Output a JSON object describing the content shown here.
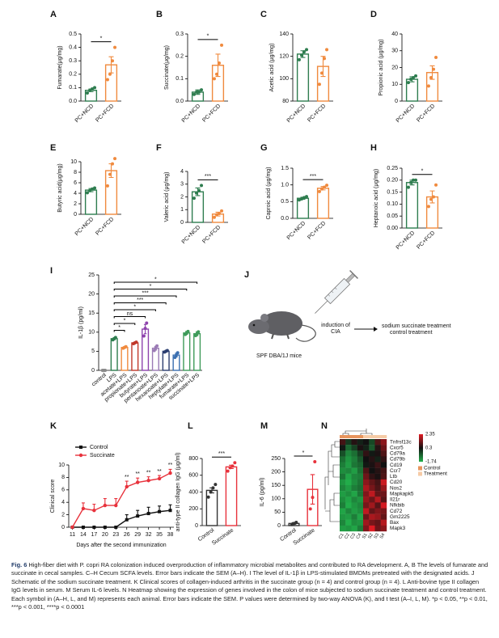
{
  "chart_data": [
    {
      "panel": "A",
      "type": "bar",
      "ylabel": "Fumarate(μg/mg)",
      "categories": [
        "PC+NCD",
        "PC+FCD"
      ],
      "values": [
        0.08,
        0.27
      ],
      "errors": [
        0.01,
        0.06
      ],
      "points": [
        [
          0.06,
          0.08,
          0.09,
          0.1
        ],
        [
          0.16,
          0.2,
          0.3,
          0.4
        ]
      ],
      "colors": [
        "#2e7d4f",
        "#f08a3e"
      ],
      "ylim": [
        0,
        0.5
      ],
      "yticks": [
        {
          "value": 0,
          "label": "0.0"
        },
        0.1,
        0.2,
        0.3,
        0.4,
        0.5
      ],
      "significance": "*"
    },
    {
      "panel": "B",
      "type": "bar",
      "ylabel": "Succinate(μg/mg)",
      "categories": [
        "PC+NCD",
        "PC+FCD"
      ],
      "values": [
        0.04,
        0.16
      ],
      "errors": [
        0.01,
        0.05
      ],
      "points": [
        [
          0.03,
          0.04,
          0.04,
          0.05
        ],
        [
          0.1,
          0.12,
          0.17,
          0.25
        ]
      ],
      "colors": [
        "#2e7d4f",
        "#f08a3e"
      ],
      "ylim": [
        0,
        0.3
      ],
      "yticks": [
        {
          "value": 0,
          "label": "0.0"
        },
        0.1,
        0.2,
        0.3
      ],
      "significance": "*"
    },
    {
      "panel": "C",
      "type": "bar",
      "ylabel": "Acetic acid (μg/mg)",
      "categories": [
        "PC+NCD",
        "PC+FCD"
      ],
      "values": [
        122,
        111
      ],
      "errors": [
        3,
        9
      ],
      "points": [
        [
          117,
          121,
          124,
          126
        ],
        [
          95,
          105,
          118,
          126
        ]
      ],
      "colors": [
        "#2e7d4f",
        "#f08a3e"
      ],
      "ylim": [
        80,
        140
      ],
      "yticks": [
        80,
        100,
        120,
        140
      ]
    },
    {
      "panel": "D",
      "type": "bar",
      "ylabel": "Propionic acid (μg/mg)",
      "categories": [
        "PC+NCD",
        "PC+FCD"
      ],
      "values": [
        13,
        17
      ],
      "errors": [
        1.5,
        4
      ],
      "points": [
        [
          11,
          13,
          14,
          15
        ],
        [
          9,
          14,
          19,
          26
        ]
      ],
      "colors": [
        "#2e7d4f",
        "#f08a3e"
      ],
      "ylim": [
        0,
        40
      ],
      "yticks": [
        0,
        10,
        20,
        30,
        40
      ]
    },
    {
      "panel": "E",
      "type": "bar",
      "ylabel": "Butyric acid(μg/mg)",
      "categories": [
        "PC+NCD",
        "PC+FCD"
      ],
      "values": [
        4.6,
        8.3
      ],
      "errors": [
        0.3,
        1.3
      ],
      "points": [
        [
          4.1,
          4.5,
          4.8,
          5.0
        ],
        [
          5.4,
          7.6,
          9.6,
          10.6
        ]
      ],
      "colors": [
        "#2e7d4f",
        "#f08a3e"
      ],
      "ylim": [
        0,
        10
      ],
      "yticks": [
        0,
        2,
        4,
        6,
        8,
        10
      ]
    },
    {
      "panel": "F",
      "type": "bar",
      "ylabel": "Valeric acid (μg/mg)",
      "categories": [
        "PC+NCD",
        "PC+FCD"
      ],
      "values": [
        2.4,
        0.65
      ],
      "errors": [
        0.3,
        0.15
      ],
      "points": [
        [
          1.9,
          2.3,
          2.5,
          2.9
        ],
        [
          0.4,
          0.6,
          0.7,
          0.9
        ]
      ],
      "colors": [
        "#2e7d4f",
        "#f08a3e"
      ],
      "ylim": [
        0,
        4
      ],
      "yticks": [
        0,
        1,
        2,
        3,
        4
      ],
      "significance": "***"
    },
    {
      "panel": "G",
      "type": "bar",
      "ylabel": "Caproic acid (μg/mg)",
      "categories": [
        "PC+NCD",
        "PC+FCD"
      ],
      "values": [
        0.6,
        0.9
      ],
      "errors": [
        0.03,
        0.05
      ],
      "points": [
        [
          0.55,
          0.58,
          0.62,
          0.65
        ],
        [
          0.8,
          0.88,
          0.93,
          0.99
        ]
      ],
      "colors": [
        "#2e7d4f",
        "#f08a3e"
      ],
      "ylim": [
        0,
        1.5
      ],
      "yticks": [
        {
          "value": 0,
          "label": "0.0"
        },
        0.5,
        {
          "value": 1,
          "label": "1.0"
        },
        1.5
      ],
      "significance": "***"
    },
    {
      "panel": "H",
      "type": "bar",
      "ylabel": "Heptanoic acid (μg/mg)",
      "categories": [
        "PC+NCD",
        "PC+FCD"
      ],
      "values": [
        0.19,
        0.13
      ],
      "errors": [
        0.01,
        0.025
      ],
      "points": [
        [
          0.17,
          0.19,
          0.2,
          0.2
        ],
        [
          0.09,
          0.12,
          0.13,
          0.18
        ]
      ],
      "colors": [
        "#2e7d4f",
        "#f08a3e"
      ],
      "ylim": [
        0,
        0.25
      ],
      "yticks": [
        {
          "value": 0,
          "label": "0.00"
        },
        0.05,
        {
          "value": 0.1,
          "label": "0.10"
        },
        0.15,
        {
          "value": 0.2,
          "label": "0.20"
        },
        0.25
      ],
      "significance": "*"
    },
    {
      "panel": "I",
      "type": "bar",
      "ylabel": "IL-1β (pg/ml)",
      "categories": [
        "control",
        "LPS",
        "acetate+LPS",
        "propionate+LPS",
        "butyrate+LPS",
        "pentanoate+LPS",
        "hexanoate+LPS",
        "heptylate+LPS",
        "fumarate+LPS",
        "succinate+LPS"
      ],
      "values": [
        0,
        8.3,
        6,
        7.2,
        10.8,
        5.8,
        5,
        4,
        9.8,
        9.6
      ],
      "errors": [
        0,
        0.3,
        0.2,
        0.2,
        1.2,
        0.5,
        0.2,
        0.5,
        0.4,
        0.5
      ],
      "points": [
        [
          0,
          0,
          0
        ],
        [
          8,
          8.3,
          8.6
        ],
        [
          5.8,
          6,
          6.2
        ],
        [
          7,
          7.2,
          7.4
        ],
        [
          9,
          11,
          12.4
        ],
        [
          5.2,
          5.8,
          6.4
        ],
        [
          4.8,
          5,
          5.2
        ],
        [
          3.4,
          4,
          4.6
        ],
        [
          9.4,
          9.8,
          10.2
        ],
        [
          9.1,
          9.6,
          10.1
        ]
      ],
      "colors": [
        "#8a8a8a",
        "#2e7d4f",
        "#f08a3e",
        "#c0392b",
        "#8e44ad",
        "#9b7bb5",
        "#2c3e70",
        "#3a6fb0",
        "#3f9b5a",
        "#3f9b5a"
      ],
      "ylim": [
        0,
        25
      ],
      "yticks": [
        0,
        5,
        10,
        15,
        20,
        25
      ],
      "comparisons": [
        {
          "from": "LPS",
          "to": "acetate+LPS",
          "label": "*"
        },
        {
          "from": "LPS",
          "to": "propionate+LPS",
          "label": "*"
        },
        {
          "from": "LPS",
          "to": "butyrate+LPS",
          "label": "ns"
        },
        {
          "from": "LPS",
          "to": "pentanoate+LPS",
          "label": "*"
        },
        {
          "from": "LPS",
          "to": "hexanoate+LPS",
          "label": "***"
        },
        {
          "from": "LPS",
          "to": "heptylate+LPS",
          "label": "***"
        },
        {
          "from": "LPS",
          "to": "fumarate+LPS",
          "label": "*"
        },
        {
          "from": "LPS",
          "to": "succinate+LPS",
          "label": "*"
        }
      ]
    },
    {
      "panel": "K",
      "type": "line",
      "ylabel": "Clinical score",
      "xlabel": "Days after the second immunization",
      "x": [
        11,
        14,
        17,
        20,
        23,
        26,
        29,
        32,
        35,
        38
      ],
      "xlim": [
        10,
        39
      ],
      "xticks": [
        11,
        14,
        17,
        20,
        23,
        26,
        29,
        32,
        35,
        38
      ],
      "ylim": [
        0,
        10
      ],
      "yticks": [
        0,
        2,
        4,
        6,
        8,
        10
      ],
      "series": [
        {
          "name": "Control",
          "color": "#111111",
          "values": [
            0,
            0,
            0,
            0,
            0,
            1.2,
            1.8,
            2.2,
            2.5,
            2.7
          ],
          "errors": [
            0,
            0,
            0,
            0,
            0,
            0.8,
            0.9,
            1,
            0.9,
            0.9
          ]
        },
        {
          "name": "Succinate",
          "color": "#e8323c",
          "values": [
            0,
            3,
            2.7,
            3.5,
            3.5,
            6.5,
            7.2,
            7.5,
            7.8,
            8.7
          ],
          "errors": [
            0,
            0.9,
            1,
            1.1,
            1.1,
            0.9,
            0.7,
            0.6,
            0.5,
            0.6
          ]
        }
      ],
      "annotations": [
        {
          "x": 26,
          "label": "**"
        },
        {
          "x": 29,
          "label": "**"
        },
        {
          "x": 32,
          "label": "**"
        },
        {
          "x": 35,
          "label": "**"
        },
        {
          "x": 38,
          "label": "**"
        }
      ]
    },
    {
      "panel": "L",
      "type": "bar",
      "ylabel": "anti-type II collagen IgG (μg/ml)",
      "categories": [
        "Control",
        "Succinate"
      ],
      "values": [
        420,
        700
      ],
      "errors": [
        30,
        20
      ],
      "points": [
        [
          340,
          400,
          450,
          490
        ],
        [
          650,
          690,
          710,
          750
        ]
      ],
      "colors": [
        "#333333",
        "#e8323c"
      ],
      "ylim": [
        0,
        800
      ],
      "yticks": [
        0,
        200,
        400,
        600,
        800
      ],
      "significance": "***"
    },
    {
      "panel": "M",
      "type": "bar",
      "ylabel": "IL-6 (pg/ml)",
      "categories": [
        "Control",
        "Succinate"
      ],
      "values": [
        8,
        135
      ],
      "errors": [
        3,
        55
      ],
      "points": [
        [
          4,
          8,
          12
        ],
        [
          62,
          105,
          238
        ]
      ],
      "colors": [
        "#333333",
        "#e8323c"
      ],
      "ylim": [
        0,
        250
      ],
      "yticks": [
        0,
        50,
        100,
        150,
        200,
        250
      ],
      "significance": "*"
    },
    {
      "panel": "N",
      "type": "heatmap",
      "rows": [
        "Tnfrsf13c",
        "Cxcr5",
        "Cd79a",
        "Cd79b",
        "Cd19",
        "Ccr7",
        "Ltb",
        "Cd20",
        "Nos2",
        "Mapkapk5",
        "Il21r",
        "Nfkbib",
        "Cd72",
        "Gm2225",
        "Bax",
        "Mapk3"
      ],
      "columns": [
        "C1",
        "C2",
        "C3",
        "C4",
        "S1",
        "S2",
        "S3",
        "S4"
      ],
      "groups": [
        "Control",
        "Control",
        "Control",
        "Control",
        "Treatment",
        "Treatment",
        "Treatment",
        "Treatment"
      ],
      "group_legend": [
        {
          "name": "Control",
          "color": "#e8955e"
        },
        {
          "name": "Treatment",
          "color": "#f6cba6"
        }
      ],
      "values": [
        [
          0.8,
          -0.2,
          0.5,
          0.1,
          0.3,
          -0.4,
          0.9,
          1.5
        ],
        [
          0.2,
          -0.8,
          -0.3,
          0.4,
          0.1,
          -0.6,
          0.5,
          1.2
        ],
        [
          -0.5,
          -1.2,
          -0.9,
          -0.3,
          0.6,
          0.2,
          0.4,
          0.9
        ],
        [
          -0.9,
          -1.4,
          -1.1,
          -0.6,
          0.3,
          0.5,
          0.1,
          0.6
        ],
        [
          -1.1,
          -1.5,
          -1.0,
          -0.8,
          0.2,
          0.4,
          0.7,
          0.3
        ],
        [
          -1.3,
          -1.2,
          -1.5,
          -0.9,
          0.9,
          0.3,
          0.5,
          0.8
        ],
        [
          -1.0,
          -1.6,
          -1.2,
          -1.1,
          1.2,
          0.6,
          0.4,
          0.9
        ],
        [
          -1.4,
          -1.7,
          -1.3,
          -1.0,
          1.5,
          1.1,
          0.8,
          2.1
        ],
        [
          -1.2,
          -1.5,
          -1.1,
          -0.9,
          1.8,
          1.3,
          0.9,
          1.6
        ],
        [
          -1.5,
          -1.3,
          -1.6,
          -1.0,
          1.4,
          2.0,
          1.1,
          1.2
        ],
        [
          -1.3,
          -1.6,
          -1.2,
          -1.4,
          1.6,
          1.2,
          1.9,
          1.0
        ],
        [
          -1.1,
          -1.7,
          -1.4,
          -1.2,
          1.3,
          1.7,
          1.0,
          2.2
        ],
        [
          -1.6,
          -1.2,
          -1.5,
          -1.3,
          2.0,
          1.1,
          1.4,
          1.3
        ],
        [
          -1.4,
          -1.5,
          -1.1,
          -1.6,
          1.2,
          1.8,
          1.6,
          1.1
        ],
        [
          -1.2,
          -1.7,
          -1.3,
          -1.4,
          1.7,
          1.3,
          1.1,
          1.9
        ],
        [
          -1.5,
          -1.4,
          -1.6,
          -1.1,
          1.4,
          2.3,
          1.2,
          1.5
        ]
      ],
      "cticks": [
        -1.74,
        0.3,
        2.35
      ],
      "ccolors": [
        "#22b04b",
        "#111111",
        "#e21b23"
      ]
    }
  ],
  "schematic": {
    "panel": "J",
    "induction_lines": [
      "induction of",
      "CIA"
    ],
    "mice": "SPF DBA/1J mice",
    "treatment": "sodium succinate treatment",
    "control": "control treatment"
  },
  "caption": {
    "label": "Fig. 6",
    "text": "High-fiber diet with P. copri RA colonization induced overproduction of inflammatory microbial metabolites and contributed to RA development. A, B The levels of fumarate and succinate in cecal samples. C–H Cecum SCFA levels. Error bars indicate the SEM (A–H). I The level of IL-1β in LPS-stimulated BMDMs pretreated with the designated acids. J Schematic of the sodium succinate treatment. K Clinical scores of collagen-induced arthritis in the succinate group (n = 4) and control group (n = 4). L Anti-bovine type II collagen IgG levels in serum. M Serum IL-6 levels. N Heatmap showing the expression of genes involved in the colon of mice subjected to sodium succinate treatment and control treatment. Each symbol in (A–H, L, and M) represents each animal. Error bars indicate the SEM. P values were determined by two-way ANOVA (K), and t test (A–I, L, M). *p < 0.05, **p < 0.01, ***p < 0.001, ****p < 0.0001"
  }
}
